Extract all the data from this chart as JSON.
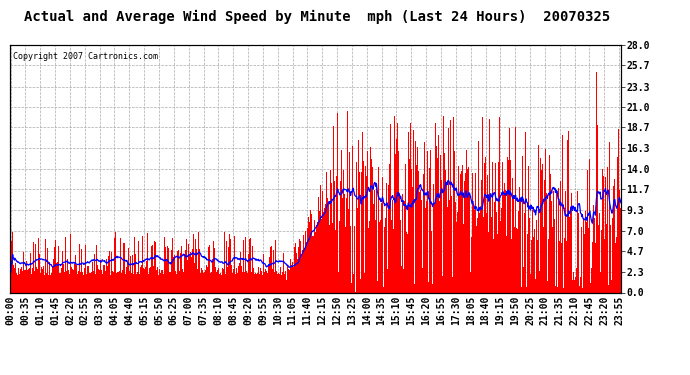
{
  "title": "Actual and Average Wind Speed by Minute  mph (Last 24 Hours)  20070325",
  "copyright": "Copyright 2007 Cartronics.com",
  "yticks": [
    0.0,
    2.3,
    4.7,
    7.0,
    9.3,
    11.7,
    14.0,
    16.3,
    18.7,
    21.0,
    23.3,
    25.7,
    28.0
  ],
  "ymax": 28.0,
  "ymin": 0.0,
  "bar_color": "#FF0000",
  "line_color": "#0000FF",
  "bg_color": "#FFFFFF",
  "plot_bg_color": "#FFFFFF",
  "grid_color": "#AAAAAA",
  "title_fontsize": 10,
  "copyright_fontsize": 6,
  "tick_fontsize": 7,
  "n_minutes": 1440,
  "xtick_interval": 35,
  "xtick_labels": [
    "00:00",
    "00:35",
    "01:10",
    "01:45",
    "02:20",
    "02:55",
    "03:30",
    "04:05",
    "04:40",
    "05:15",
    "05:50",
    "06:25",
    "07:00",
    "07:35",
    "08:10",
    "08:45",
    "09:20",
    "09:55",
    "10:30",
    "11:05",
    "11:40",
    "12:15",
    "12:50",
    "13:25",
    "14:00",
    "14:35",
    "15:10",
    "15:45",
    "16:20",
    "16:55",
    "17:30",
    "18:05",
    "18:40",
    "19:15",
    "19:50",
    "20:25",
    "21:00",
    "21:35",
    "22:10",
    "22:45",
    "23:20",
    "23:55"
  ]
}
